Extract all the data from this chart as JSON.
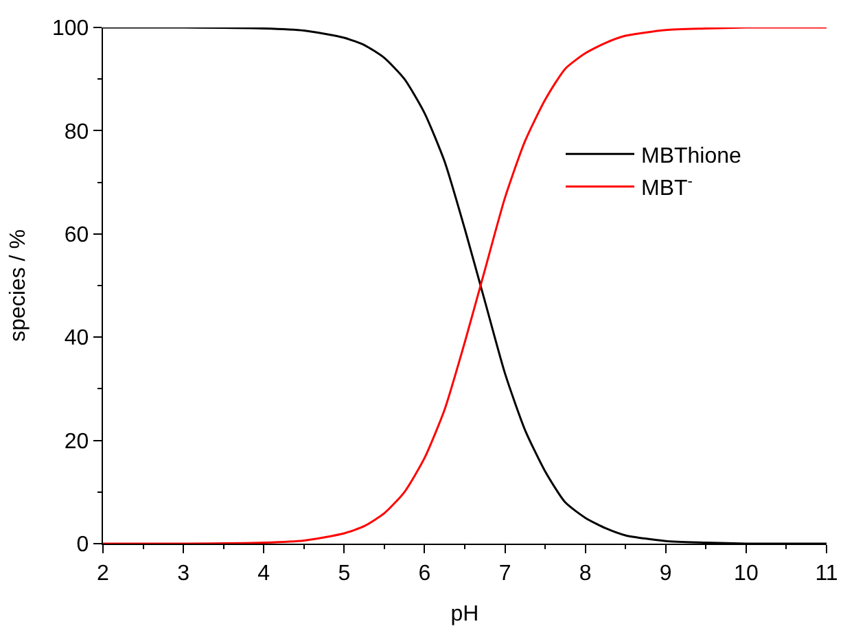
{
  "chart_data": {
    "type": "line",
    "xlabel": "pH",
    "ylabel": "species / %",
    "x": [
      2,
      3,
      4,
      4.5,
      5,
      5.25,
      5.5,
      5.75,
      6,
      6.25,
      6.5,
      6.75,
      7,
      7.25,
      7.5,
      7.75,
      8,
      8.25,
      8.5,
      9,
      9.5,
      10,
      11
    ],
    "series": [
      {
        "name": "MBThione",
        "color": "#000000",
        "values": [
          100,
          100,
          99.8,
          99.4,
          98,
          96.6,
          94.1,
          90,
          83.4,
          74,
          61,
          47,
          33,
          22,
          14,
          8,
          5,
          3,
          1.6,
          0.5,
          0.2,
          0,
          0
        ]
      },
      {
        "name": "MBT$^{-}$",
        "color": "#ff0000",
        "values": [
          0,
          0,
          0.2,
          0.6,
          2,
          3.4,
          5.9,
          10,
          16.6,
          26,
          39,
          53,
          67,
          78,
          86,
          92,
          95,
          97,
          98.4,
          99.5,
          99.8,
          100,
          100
        ]
      }
    ],
    "xlim": [
      2,
      11
    ],
    "xticks": [
      2,
      3,
      4,
      5,
      6,
      7,
      8,
      9,
      10,
      11
    ],
    "ylim": [
      0,
      100
    ],
    "yticks": [
      0,
      20,
      40,
      60,
      80,
      100
    ],
    "legend": "top right",
    "marker": "none",
    "line_style": "solid"
  }
}
